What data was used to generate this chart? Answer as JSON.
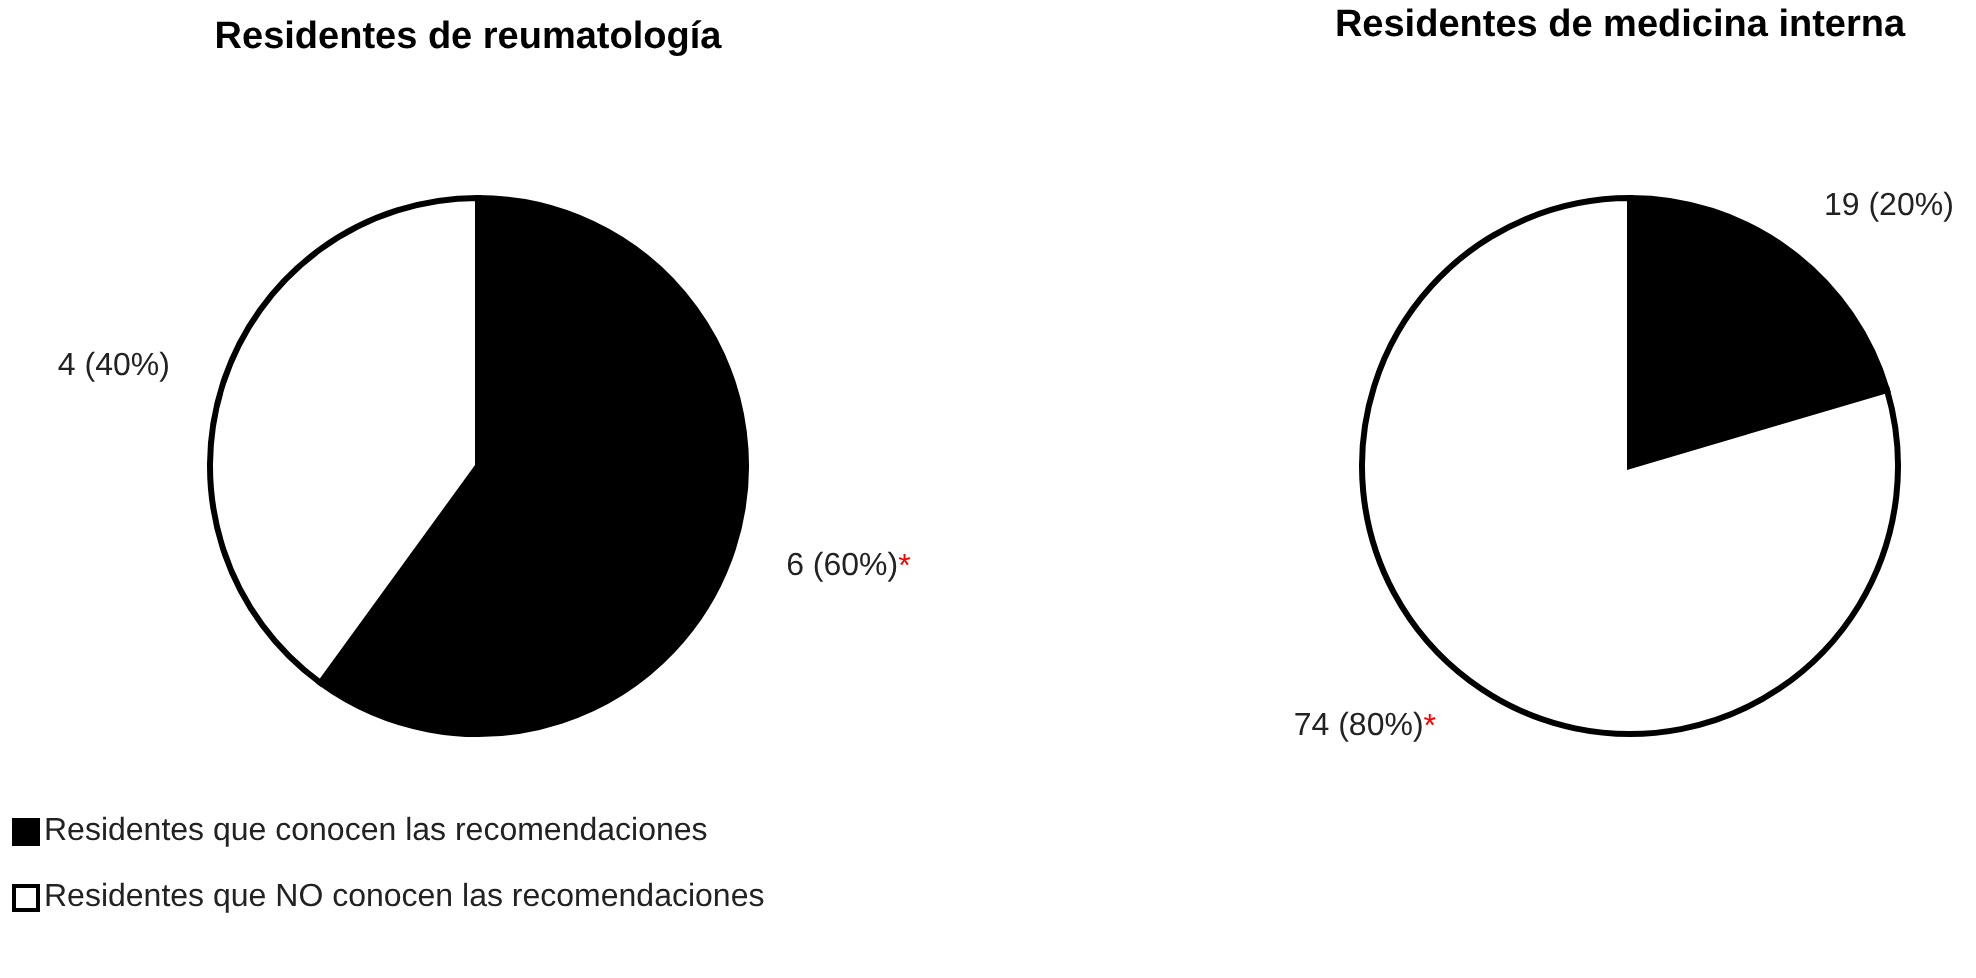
{
  "chart_data": [
    {
      "type": "pie",
      "title": "Residentes de reumatología",
      "categories": [
        "Residentes que conocen las recomendaciones",
        "Residentes que NO conocen las recomendaciones"
      ],
      "values": [
        6,
        4
      ],
      "colors": [
        "#000000",
        "#ffffff"
      ],
      "value_labels": [
        "6 (60%)*",
        "4 (40%)"
      ],
      "legend": "bottom left"
    },
    {
      "type": "pie",
      "title": "Residentes de medicina interna",
      "categories": [
        null,
        null
      ],
      "values": [
        19,
        74
      ],
      "colors": [
        "#000000",
        "#ffffff"
      ],
      "value_labels": [
        "19 (20%)",
        "74 (80%)*"
      ],
      "legend": false
    }
  ]
}
